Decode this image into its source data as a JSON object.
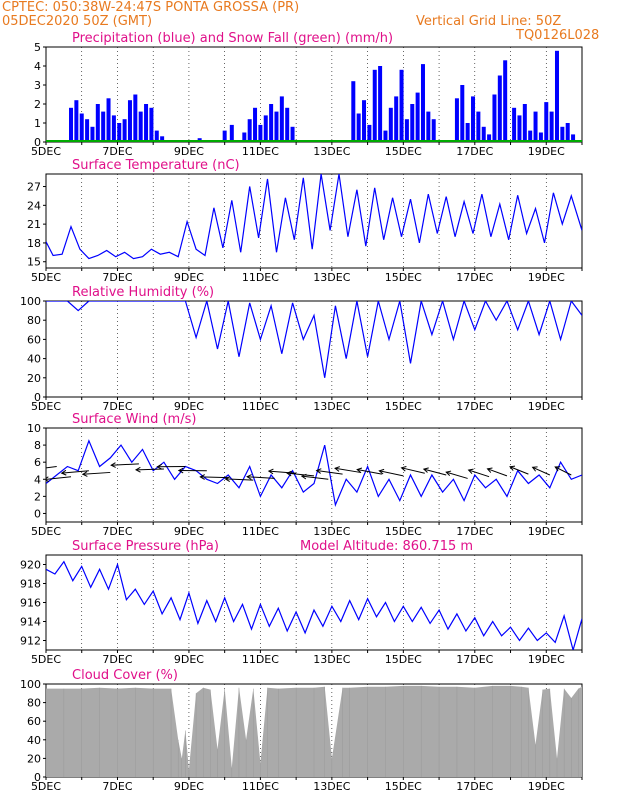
{
  "header": {
    "line1": "CPTEC:  050:38W-24:47S  PONTA GROSSA (PR)",
    "line2": "05DEC2020 50Z (GMT)",
    "grid_note": "Vertical Grid Line: 50Z",
    "code": "TQ0126L028"
  },
  "colors": {
    "title": "#e0108a",
    "header": "#e87a20",
    "precip": "#0000ff",
    "snow": "#00aa00",
    "line": "#0000ff",
    "cloud": "#aaaaaa",
    "wind_arrow": "#000000"
  },
  "x_axis": {
    "labels": [
      "5DEC",
      "7DEC",
      "9DEC",
      "11DEC",
      "13DEC",
      "15DEC",
      "17DEC",
      "19DEC"
    ],
    "grid": "vertical dashed at 50Z each day",
    "range_days": [
      5,
      20
    ]
  },
  "chart_data": [
    {
      "id": "precip",
      "type": "bar",
      "title": "Precipitation (blue) and Snow Fall (green) (mm/h)",
      "ylim": [
        0,
        5
      ],
      "yticks": [
        "0",
        "1",
        "2",
        "3",
        "4",
        "5"
      ],
      "series": [
        {
          "name": "Precipitation",
          "color": "#0000ff",
          "x": [
            5.7,
            5.85,
            6.0,
            6.15,
            6.3,
            6.45,
            6.6,
            6.75,
            6.9,
            7.05,
            7.2,
            7.35,
            7.5,
            7.65,
            7.8,
            7.95,
            8.1,
            8.25,
            8.6,
            8.9,
            9.3,
            9.8,
            10.0,
            10.2,
            10.55,
            10.7,
            10.85,
            11.0,
            11.15,
            11.3,
            11.45,
            11.6,
            11.75,
            11.9,
            13.6,
            13.75,
            13.9,
            14.05,
            14.2,
            14.35,
            14.5,
            14.65,
            14.8,
            14.95,
            15.1,
            15.25,
            15.4,
            15.55,
            15.7,
            15.85,
            16.5,
            16.65,
            16.8,
            16.95,
            17.1,
            17.25,
            17.4,
            17.55,
            17.7,
            17.85,
            18.1,
            18.25,
            18.4,
            18.55,
            18.7,
            18.85,
            19.0,
            19.15,
            19.3,
            19.45,
            19.6,
            19.75
          ],
          "values": [
            1.8,
            2.2,
            1.5,
            1.2,
            0.8,
            2.0,
            1.6,
            2.3,
            1.4,
            1.0,
            1.2,
            2.2,
            2.5,
            1.6,
            2.0,
            1.8,
            0.6,
            0.3,
            0.1,
            0.1,
            0.2,
            0.1,
            0.6,
            0.9,
            0.5,
            1.2,
            1.8,
            0.9,
            1.4,
            2.0,
            1.6,
            2.4,
            1.8,
            0.8,
            3.2,
            1.5,
            2.2,
            0.9,
            3.8,
            4.0,
            0.6,
            1.8,
            2.4,
            3.8,
            1.2,
            2.0,
            2.6,
            4.1,
            1.6,
            1.2,
            2.3,
            3.0,
            1.0,
            2.4,
            1.6,
            0.8,
            0.4,
            2.5,
            3.5,
            4.3,
            1.8,
            1.4,
            2.0,
            0.6,
            1.6,
            0.5,
            2.1,
            1.6,
            4.8,
            0.8,
            1.0,
            0.4
          ]
        },
        {
          "name": "Snow Fall",
          "color": "#00aa00",
          "values": [
            0
          ]
        }
      ]
    },
    {
      "id": "temp",
      "type": "line",
      "title": "Surface Temperature (nC)",
      "ylim": [
        14,
        29
      ],
      "yticks": [
        "15",
        "18",
        "21",
        "24",
        "27"
      ],
      "x": [
        5.0,
        5.2,
        5.45,
        5.7,
        5.95,
        6.2,
        6.45,
        6.7,
        6.95,
        7.2,
        7.45,
        7.7,
        7.95,
        8.2,
        8.45,
        8.7,
        8.95,
        9.2,
        9.45,
        9.7,
        9.95,
        10.2,
        10.45,
        10.7,
        10.95,
        11.2,
        11.45,
        11.7,
        11.95,
        12.2,
        12.45,
        12.7,
        12.95,
        13.2,
        13.45,
        13.7,
        13.95,
        14.2,
        14.45,
        14.7,
        14.95,
        15.2,
        15.45,
        15.7,
        15.95,
        16.2,
        16.45,
        16.7,
        16.95,
        17.2,
        17.45,
        17.7,
        17.95,
        18.2,
        18.45,
        18.7,
        18.95,
        19.2,
        19.45,
        19.7,
        20.0
      ],
      "values": [
        18.2,
        16.0,
        16.2,
        20.6,
        17.0,
        15.5,
        16.0,
        16.8,
        15.8,
        16.5,
        15.5,
        15.8,
        17.0,
        16.2,
        16.5,
        15.8,
        21.4,
        17.0,
        16.0,
        23.6,
        17.2,
        24.8,
        16.5,
        27.0,
        18.8,
        28.2,
        16.5,
        25.2,
        18.5,
        28.4,
        17.0,
        29.0,
        20.0,
        29.0,
        19.0,
        26.5,
        17.5,
        26.8,
        18.5,
        25.2,
        19.0,
        25.0,
        18.0,
        25.8,
        19.5,
        25.4,
        19.0,
        24.6,
        19.5,
        25.8,
        19.0,
        24.2,
        18.5,
        25.6,
        19.5,
        23.5,
        18.0,
        26.0,
        21.0,
        25.5,
        20.0
      ]
    },
    {
      "id": "rh",
      "type": "line",
      "title": "Relative Humidity (%)",
      "ylim": [
        0,
        100
      ],
      "yticks": [
        "0",
        "20",
        "40",
        "60",
        "80",
        "100"
      ],
      "x": [
        5.0,
        5.3,
        5.6,
        5.9,
        6.2,
        6.5,
        6.8,
        7.1,
        7.4,
        7.7,
        8.0,
        8.3,
        8.6,
        8.9,
        9.2,
        9.5,
        9.8,
        10.1,
        10.4,
        10.7,
        11.0,
        11.3,
        11.6,
        11.9,
        12.2,
        12.5,
        12.8,
        13.1,
        13.4,
        13.7,
        14.0,
        14.3,
        14.6,
        14.9,
        15.2,
        15.5,
        15.8,
        16.1,
        16.4,
        16.7,
        17.0,
        17.3,
        17.6,
        17.9,
        18.2,
        18.5,
        18.8,
        19.1,
        19.4,
        19.7,
        20.0
      ],
      "values": [
        100,
        100,
        100,
        90,
        100,
        100,
        100,
        100,
        100,
        100,
        100,
        100,
        100,
        100,
        62,
        100,
        50,
        100,
        42,
        98,
        60,
        95,
        45,
        98,
        60,
        85,
        20,
        95,
        40,
        100,
        42,
        100,
        60,
        100,
        35,
        100,
        65,
        100,
        60,
        100,
        70,
        100,
        80,
        100,
        70,
        100,
        65,
        100,
        60,
        100,
        85
      ]
    },
    {
      "id": "wind",
      "type": "line",
      "title": "Surface Wind (m/s)",
      "ylim": [
        -1,
        10
      ],
      "yticks": [
        "0",
        "2",
        "4",
        "6",
        "8",
        "10"
      ],
      "x": [
        5.0,
        5.3,
        5.6,
        5.9,
        6.2,
        6.5,
        6.8,
        7.1,
        7.4,
        7.7,
        8.0,
        8.3,
        8.6,
        8.9,
        9.2,
        9.5,
        9.8,
        10.1,
        10.4,
        10.7,
        11.0,
        11.3,
        11.6,
        11.9,
        12.2,
        12.5,
        12.8,
        13.1,
        13.4,
        13.7,
        14.0,
        14.3,
        14.6,
        14.9,
        15.2,
        15.5,
        15.8,
        16.1,
        16.4,
        16.7,
        17.0,
        17.3,
        17.6,
        17.9,
        18.2,
        18.5,
        18.8,
        19.1,
        19.4,
        19.7,
        20.0
      ],
      "values": [
        3.5,
        4.5,
        5.5,
        5.0,
        8.5,
        5.5,
        6.5,
        8.0,
        6.0,
        7.5,
        5.0,
        6.0,
        4.0,
        5.5,
        5.0,
        4.0,
        3.5,
        4.5,
        3.0,
        5.5,
        2.0,
        4.5,
        3.0,
        5.0,
        2.5,
        3.5,
        8.0,
        1.0,
        4.0,
        2.5,
        5.5,
        2.0,
        4.0,
        1.5,
        4.5,
        2.0,
        4.5,
        2.5,
        4.0,
        1.5,
        4.5,
        3.0,
        4.0,
        2.0,
        5.0,
        3.5,
        4.5,
        3.0,
        6.0,
        4.0,
        4.5
      ],
      "arrows": {
        "x": [
          5.3,
          5.7,
          6.2,
          6.8,
          7.6,
          8.3,
          8.9,
          9.5,
          10.1,
          10.8,
          11.4,
          12.0,
          12.5,
          12.9,
          13.3,
          13.8,
          14.4,
          15.0,
          15.6,
          16.2,
          16.8,
          17.4,
          17.9,
          18.5,
          19.1,
          19.7
        ],
        "y": [
          5.5,
          4.3,
          5.0,
          4.8,
          5.8,
          5.2,
          5.5,
          5.0,
          4.2,
          3.9,
          4.1,
          4.7,
          4.4,
          4.0,
          4.6,
          4.8,
          4.6,
          4.4,
          4.7,
          4.5,
          4.1,
          4.3,
          4.4,
          4.6,
          4.5,
          4.5
        ]
      }
    },
    {
      "id": "pres",
      "type": "line",
      "title": "Surface Pressure (hPa)",
      "subtitle": "Model Altitude: 860.715 m",
      "ylim": [
        911,
        921
      ],
      "yticks": [
        "912",
        "914",
        "916",
        "918",
        "920"
      ],
      "x": [
        5.0,
        5.25,
        5.5,
        5.75,
        6.0,
        6.25,
        6.5,
        6.75,
        7.0,
        7.25,
        7.5,
        7.75,
        8.0,
        8.25,
        8.5,
        8.75,
        9.0,
        9.25,
        9.5,
        9.75,
        10.0,
        10.25,
        10.5,
        10.75,
        11.0,
        11.25,
        11.5,
        11.75,
        12.0,
        12.25,
        12.5,
        12.75,
        13.0,
        13.25,
        13.5,
        13.75,
        14.0,
        14.25,
        14.5,
        14.75,
        15.0,
        15.25,
        15.5,
        15.75,
        16.0,
        16.25,
        16.5,
        16.75,
        17.0,
        17.25,
        17.5,
        17.75,
        18.0,
        18.25,
        18.5,
        18.75,
        19.0,
        19.25,
        19.5,
        19.75,
        20.0
      ],
      "values": [
        919.5,
        919.0,
        920.3,
        918.3,
        919.8,
        917.6,
        919.5,
        917.4,
        920.0,
        916.3,
        917.4,
        915.8,
        917.2,
        914.8,
        916.5,
        914.2,
        917.0,
        913.8,
        916.2,
        914.0,
        916.5,
        914.0,
        915.8,
        913.2,
        915.8,
        913.5,
        915.4,
        913.0,
        915.0,
        912.8,
        915.2,
        913.5,
        915.6,
        914.0,
        916.2,
        914.2,
        916.4,
        914.5,
        916.0,
        914.0,
        915.6,
        914.0,
        915.5,
        913.8,
        915.2,
        913.2,
        914.8,
        913.0,
        914.4,
        912.5,
        914.0,
        912.5,
        913.4,
        912.0,
        913.3,
        912.0,
        912.8,
        911.8,
        914.6,
        911.0,
        914.3
      ]
    },
    {
      "id": "cloud",
      "type": "area",
      "title": "Cloud Cover (%)",
      "ylim": [
        0,
        100
      ],
      "yticks": [
        "0",
        "20",
        "40",
        "60",
        "80",
        "100"
      ],
      "x": [
        5.0,
        5.5,
        6.0,
        6.5,
        7.0,
        7.5,
        8.0,
        8.5,
        8.7,
        8.8,
        8.9,
        9.0,
        9.2,
        9.4,
        9.6,
        9.8,
        10.0,
        10.2,
        10.4,
        10.6,
        10.8,
        11.0,
        11.2,
        11.5,
        12.0,
        12.5,
        12.8,
        13.0,
        13.3,
        13.5,
        14.0,
        14.5,
        15.0,
        15.5,
        16.0,
        16.5,
        17.0,
        17.5,
        18.0,
        18.3,
        18.5,
        18.7,
        18.9,
        19.1,
        19.3,
        19.5,
        19.7,
        19.9,
        20.0
      ],
      "values": [
        95,
        95,
        95,
        96,
        95,
        96,
        95,
        95,
        40,
        20,
        50,
        8,
        90,
        96,
        94,
        30,
        95,
        10,
        96,
        40,
        95,
        15,
        96,
        95,
        96,
        96,
        97,
        20,
        96,
        96,
        97,
        97,
        98,
        98,
        97,
        97,
        96,
        98,
        98,
        97,
        96,
        35,
        94,
        95,
        20,
        95,
        85,
        95,
        97
      ]
    }
  ]
}
